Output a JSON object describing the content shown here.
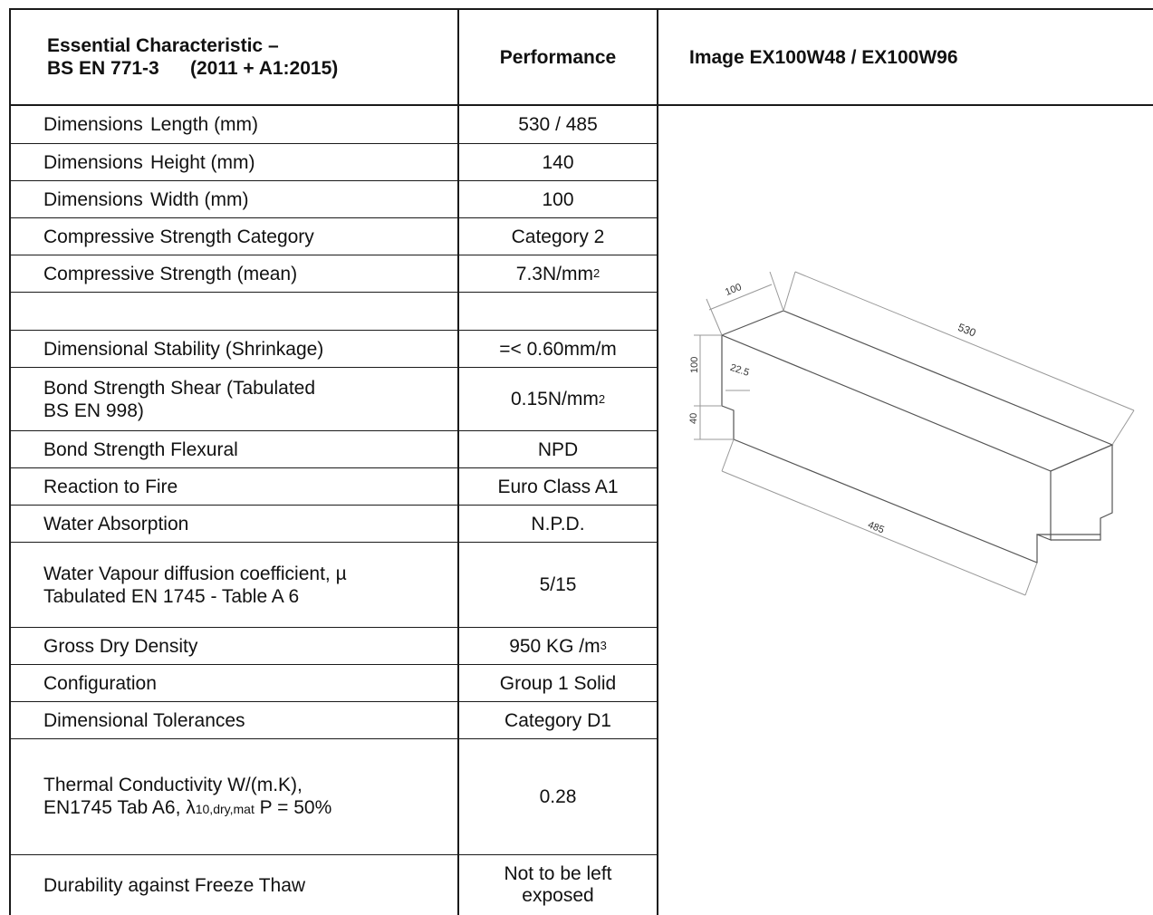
{
  "header": {
    "col1_line1": "Essential Characteristic –",
    "col1_line2a": "BS EN 771-3",
    "col1_line2b": "(2011 + A1:2015)",
    "col2": "Performance",
    "col3": "Image EX100W48 / EX100W96"
  },
  "rows": [
    {
      "label_a": "Dimensions",
      "label_b": "Length (mm)",
      "value": "530 / 485"
    },
    {
      "label_a": "Dimensions",
      "label_b": "Height (mm)",
      "value": "140"
    },
    {
      "label_a": "Dimensions",
      "label_b": "Width (mm)",
      "value": "100"
    },
    {
      "label": "Compressive Strength Category",
      "value": "Category 2"
    },
    {
      "label": "Compressive Strength (mean)",
      "value": "7.3N/mm",
      "value_sup": "2"
    },
    {
      "label": "",
      "value": ""
    },
    {
      "label": "Dimensional Stability (Shrinkage)",
      "value": "=< 0.60mm/m"
    },
    {
      "label_line1": "Bond Strength Shear (Tabulated",
      "label_line2": "BS EN 998)",
      "value": "0.15N/mm",
      "value_sup": "2"
    },
    {
      "label": "Bond Strength Flexural",
      "value": "NPD"
    },
    {
      "label": "Reaction to Fire",
      "value": "Euro Class A1"
    },
    {
      "label": "Water Absorption",
      "value": "N.P.D."
    },
    {
      "label_line1": "Water Vapour diffusion coefficient, µ",
      "label_line2": "Tabulated EN 1745 - Table A 6",
      "value": "5/15"
    },
    {
      "label": "Gross Dry Density",
      "value": "950 KG /m",
      "value_sup": "3"
    },
    {
      "label": "Configuration",
      "value": "Group 1 Solid"
    },
    {
      "label": "Dimensional Tolerances",
      "value": "Category D1"
    },
    {
      "label_line1": "Thermal Conductivity W/(m.K),",
      "label_line2a": "EN1745 Tab A6, λ",
      "label_line2_sub": "10,dry,mat",
      "label_line2b": " P = 50%",
      "value": "0.28"
    },
    {
      "label": "Durability against Freeze Thaw",
      "value_line1": "Not to be left",
      "value_line2": "exposed"
    }
  ],
  "drawing": {
    "dim_width": "100",
    "dim_length_top": "530",
    "dim_height": "100",
    "dim_notch_width": "22.5",
    "dim_notch_height": "40",
    "dim_length_bottom": "485"
  }
}
